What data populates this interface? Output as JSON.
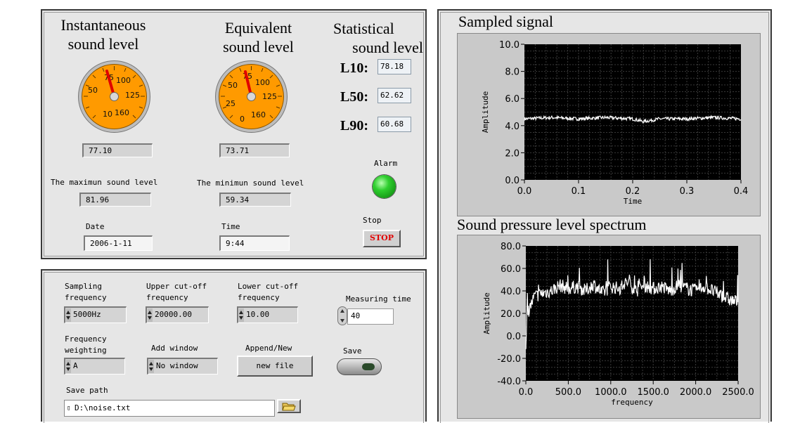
{
  "sound_panel": {
    "instantaneous_title": [
      "Instantaneous",
      "sound level"
    ],
    "equivalent_title": [
      "Equivalent",
      "sound level"
    ],
    "statistical_title": [
      "Statistical",
      "sound level"
    ],
    "gauge_instant": {
      "ticks": [
        "50",
        "75",
        "100",
        "125",
        "10",
        "160"
      ],
      "value_fraction": 0.5
    },
    "gauge_equiv": {
      "ticks": [
        "50",
        "75",
        "100",
        "125",
        "25",
        "0",
        "160"
      ],
      "value_fraction": 0.5
    },
    "stat": [
      {
        "label": "L10:",
        "value": "78.18"
      },
      {
        "label": "L50:",
        "value": "62.62"
      },
      {
        "label": "L90:",
        "value": "60.68"
      }
    ],
    "instant_value": "77.10",
    "equiv_value": "73.71",
    "alarm_label": "Alarm",
    "alarm_color": "#1fb51f",
    "max_label": "The maximun sound level",
    "max_value": "81.96",
    "min_label": "The minimun sound level",
    "min_value": "59.34",
    "date_label": "Date",
    "date_value": "2006-1-11",
    "time_label": "Time",
    "time_value": "9:44",
    "stop_label": "Stop",
    "stop_button": "STOP",
    "gauge_color": "#ff9a00",
    "needle_color": "#e00000"
  },
  "settings": {
    "sampling_label": [
      "Sampling",
      "frequency"
    ],
    "sampling_value": "5000Hz",
    "upper_label": [
      "Upper cut-off",
      "frequency"
    ],
    "upper_value": "20000.00",
    "lower_label": [
      "Lower cut-off",
      "frequency"
    ],
    "lower_value": "10.00",
    "measuring_label": "Measuring time",
    "measuring_value": "40",
    "weighting_label": [
      "Frequency",
      "weighting"
    ],
    "weighting_value": "A",
    "window_label": "Add window",
    "window_value": "No window",
    "append_label": "Append/New",
    "append_button": "new file",
    "save_label": "Save",
    "path_label": "Save path",
    "path_value": "D:\\noise.txt"
  },
  "graphs": {
    "sampled_title": "Sampled signal",
    "spectrum_title": "Sound pressure level spectrum",
    "plot_bg": "#000000",
    "trace_color": "#ffffff"
  },
  "chart_data": [
    {
      "type": "line",
      "title": "Sampled signal",
      "xlabel": "Time",
      "ylabel": "Amplitude",
      "xlim": [
        0.0,
        0.4
      ],
      "ylim": [
        0.0,
        10.0
      ],
      "xticks": [
        "0.0",
        "0.1",
        "0.2",
        "0.3",
        "0.4"
      ],
      "yticks": [
        "10.0",
        "8.0",
        "6.0",
        "4.0",
        "2.0",
        "0.0"
      ],
      "grid": true,
      "series": [
        {
          "x": [
            0.0,
            0.05,
            0.1,
            0.15,
            0.2,
            0.22,
            0.25,
            0.3,
            0.35,
            0.4
          ],
          "y": [
            4.5,
            4.6,
            4.5,
            4.6,
            4.5,
            4.3,
            4.5,
            4.5,
            4.6,
            4.5
          ]
        }
      ]
    },
    {
      "type": "line",
      "title": "Sound pressure level spectrum",
      "xlabel": "frequency",
      "ylabel": "Amplitude",
      "xlim": [
        0.0,
        2500.0
      ],
      "ylim": [
        -40.0,
        80.0
      ],
      "xticks": [
        "0.0",
        "500.0",
        "1000.0",
        "1500.0",
        "2000.0",
        "2500.0"
      ],
      "yticks": [
        "80.0",
        "60.0",
        "40.0",
        "20.0",
        "0.0",
        "-20.0",
        "-40.0"
      ],
      "grid": true,
      "series": [
        {
          "x": [
            0,
            20,
            100,
            200,
            300,
            400,
            500,
            600,
            700,
            800,
            900,
            1000,
            1100,
            1200,
            1300,
            1400,
            1500,
            1600,
            1700,
            1800,
            1900,
            2000,
            2100,
            2200,
            2300,
            2400,
            2500
          ],
          "y": [
            -10,
            20,
            35,
            38,
            40,
            45,
            42,
            44,
            40,
            46,
            38,
            44,
            42,
            48,
            40,
            45,
            42,
            44,
            40,
            45,
            42,
            40,
            44,
            40,
            36,
            32,
            30
          ]
        }
      ]
    }
  ]
}
